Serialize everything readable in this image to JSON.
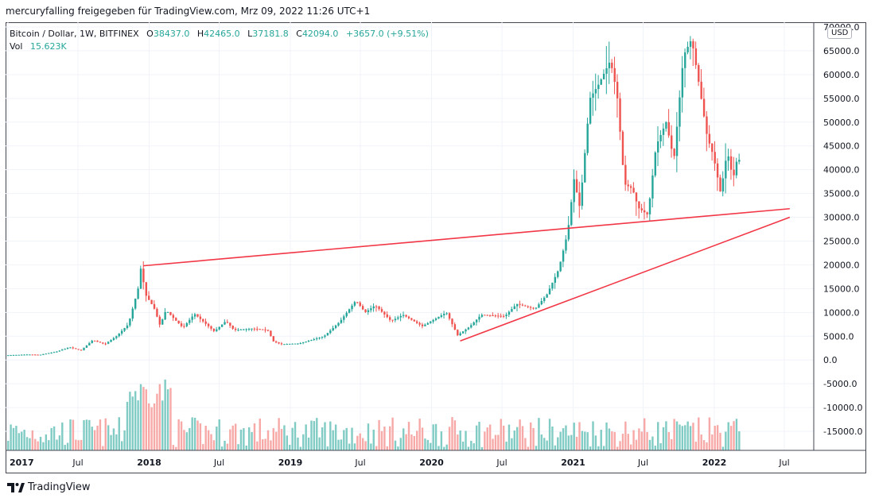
{
  "header": {
    "title": "mercuryfalling freigegeben für TradingView.com, Mrz 09, 2022 11:26 UTC+1"
  },
  "legend": {
    "symbol": "Bitcoin / Dollar, 1W, BITFINEX",
    "open_label": "O",
    "open": "38437.0",
    "high_label": "H",
    "high": "42465.0",
    "low_label": "L",
    "low": "37181.8",
    "close_label": "C",
    "close": "42094.0",
    "change": "+3657.0 (+9.51%)",
    "vol_label": "Vol",
    "vol": "15.623K"
  },
  "currency_badge": "USD",
  "branding": "TradingView",
  "colors": {
    "up": "#26a69a",
    "down": "#ef5350",
    "vol_up": "#80cbc4",
    "vol_down": "#f7a9a7",
    "trendline": "#f23645",
    "grid": "#f0f3fa"
  },
  "chart_data": {
    "type": "candlestick",
    "interval": "1W",
    "y_axis_side": "right",
    "y_range": [
      -19000,
      71000
    ],
    "y_ticks": [
      -15000,
      -10000,
      -5000,
      0,
      5000,
      10000,
      15000,
      20000,
      25000,
      30000,
      35000,
      40000,
      45000,
      50000,
      55000,
      60000,
      65000,
      70000
    ],
    "y_tick_labels": [
      "-15000.0",
      "-10000.0",
      "-5000.0",
      "0.0",
      "5000.0",
      "10000.0",
      "15000.0",
      "20000.0",
      "25000.0",
      "30000.0",
      "35000.0",
      "40000.0",
      "45000.0",
      "50000.0",
      "55000.0",
      "60000.0",
      "65000.0",
      "70000.0"
    ],
    "x_range": [
      "2017-01-01",
      "2022-09-15"
    ],
    "x_ticks": [
      "2017-01-01",
      "2017-07-01",
      "2018-01-01",
      "2018-07-01",
      "2019-01-01",
      "2019-07-01",
      "2020-01-01",
      "2020-07-01",
      "2021-01-01",
      "2021-07-01",
      "2022-01-01",
      "2022-07-01"
    ],
    "x_tick_labels": [
      "2017",
      "Jul",
      "2018",
      "Jul",
      "2019",
      "Jul",
      "2020",
      "Jul",
      "2021",
      "Jul",
      "2022",
      "Jul"
    ],
    "grid": true,
    "price_path": [
      [
        "2017-01-01",
        990
      ],
      [
        "2017-03-01",
        1150
      ],
      [
        "2017-04-01",
        1100
      ],
      [
        "2017-05-15",
        1800
      ],
      [
        "2017-06-15",
        2700
      ],
      [
        "2017-07-15",
        2000
      ],
      [
        "2017-08-15",
        4200
      ],
      [
        "2017-09-15",
        3300
      ],
      [
        "2017-10-15",
        5000
      ],
      [
        "2017-11-15",
        7500
      ],
      [
        "2017-12-10",
        15000
      ],
      [
        "2017-12-17",
        19200
      ],
      [
        "2017-12-31",
        13500
      ],
      [
        "2018-01-20",
        11000
      ],
      [
        "2018-02-05",
        7200
      ],
      [
        "2018-02-20",
        10500
      ],
      [
        "2018-03-15",
        8500
      ],
      [
        "2018-04-05",
        6800
      ],
      [
        "2018-05-05",
        9700
      ],
      [
        "2018-06-25",
        6000
      ],
      [
        "2018-07-25",
        8200
      ],
      [
        "2018-08-15",
        6300
      ],
      [
        "2018-10-01",
        6600
      ],
      [
        "2018-11-10",
        6300
      ],
      [
        "2018-11-25",
        3900
      ],
      [
        "2018-12-15",
        3300
      ],
      [
        "2019-02-01",
        3500
      ],
      [
        "2019-04-05",
        5000
      ],
      [
        "2019-05-15",
        8000
      ],
      [
        "2019-06-26",
        12500
      ],
      [
        "2019-07-20",
        10000
      ],
      [
        "2019-08-15",
        11500
      ],
      [
        "2019-09-25",
        8200
      ],
      [
        "2019-10-26",
        9500
      ],
      [
        "2019-12-15",
        7100
      ],
      [
        "2020-02-15",
        10000
      ],
      [
        "2020-03-15",
        5200
      ],
      [
        "2020-04-15",
        7000
      ],
      [
        "2020-05-15",
        9500
      ],
      [
        "2020-07-15",
        9200
      ],
      [
        "2020-08-15",
        11800
      ],
      [
        "2020-10-01",
        10700
      ],
      [
        "2020-11-01",
        13800
      ],
      [
        "2020-12-01",
        19000
      ],
      [
        "2020-12-25",
        27000
      ],
      [
        "2021-01-10",
        38000
      ],
      [
        "2021-01-25",
        32000
      ],
      [
        "2021-02-20",
        55000
      ],
      [
        "2021-03-15",
        58000
      ],
      [
        "2021-04-14",
        63000
      ],
      [
        "2021-05-01",
        56000
      ],
      [
        "2021-05-20",
        37000
      ],
      [
        "2021-06-10",
        36000
      ],
      [
        "2021-06-25",
        32000
      ],
      [
        "2021-07-20",
        30500
      ],
      [
        "2021-08-10",
        45000
      ],
      [
        "2021-09-05",
        50000
      ],
      [
        "2021-09-25",
        42000
      ],
      [
        "2021-10-20",
        64000
      ],
      [
        "2021-11-10",
        67500
      ],
      [
        "2021-12-01",
        57000
      ],
      [
        "2021-12-20",
        47000
      ],
      [
        "2022-01-05",
        43000
      ],
      [
        "2022-01-24",
        35000
      ],
      [
        "2022-02-10",
        44000
      ],
      [
        "2022-02-25",
        38000
      ],
      [
        "2022-03-07",
        42094
      ]
    ],
    "trendlines": [
      {
        "from": [
          "2017-12-17",
          19800
        ],
        "to": [
          "2022-07-15",
          31800
        ]
      },
      {
        "from": [
          "2020-03-15",
          4000
        ],
        "to": [
          "2022-07-15",
          30000
        ]
      }
    ]
  }
}
